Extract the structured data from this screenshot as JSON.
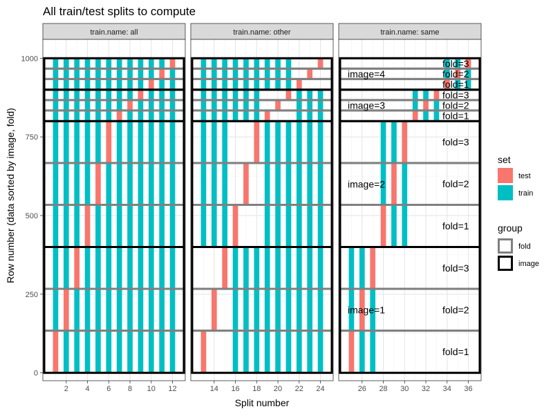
{
  "chart_data": {
    "type": "bar",
    "title": "All train/test splits to compute",
    "xlabel": "Split number",
    "ylabel": "Row number (data sorted by image, fold)",
    "ylim": [
      -25,
      1060
    ],
    "y_ticks": [
      0,
      250,
      500,
      750,
      1000
    ],
    "facet_var": "train.name",
    "facets": [
      {
        "name": "train.name: all",
        "xlim": [
          -0.2,
          13.2
        ],
        "x_ticks": [
          2,
          4,
          6,
          8,
          10,
          12
        ]
      },
      {
        "name": "train.name: other",
        "xlim": [
          11.8,
          25.2
        ],
        "x_ticks": [
          14,
          16,
          18,
          20,
          22,
          24
        ]
      },
      {
        "name": "train.name: same",
        "xlim": [
          23.8,
          37.2
        ],
        "x_ticks": [
          26,
          28,
          30,
          32,
          34,
          36
        ]
      }
    ],
    "images": [
      {
        "name": "image=1",
        "label": "image=1",
        "start": 0,
        "end": 400,
        "folds": [
          {
            "name": "fold=1",
            "label": "fold=1",
            "start": 0,
            "end": 134
          },
          {
            "name": "fold=2",
            "label": "fold=2",
            "start": 134,
            "end": 267
          },
          {
            "name": "fold=3",
            "label": "fold=3",
            "start": 267,
            "end": 400
          }
        ]
      },
      {
        "name": "image=2",
        "label": "image=2",
        "start": 400,
        "end": 800,
        "folds": [
          {
            "name": "fold=1",
            "label": "fold=1",
            "start": 400,
            "end": 534
          },
          {
            "name": "fold=2",
            "label": "fold=2",
            "start": 534,
            "end": 667
          },
          {
            "name": "fold=3",
            "label": "fold=3",
            "start": 667,
            "end": 800
          }
        ]
      },
      {
        "name": "image=3",
        "label": "image=3",
        "start": 800,
        "end": 900,
        "folds": [
          {
            "name": "fold=1",
            "label": "fold=1",
            "start": 800,
            "end": 834
          },
          {
            "name": "fold=2",
            "label": "fold=2",
            "start": 834,
            "end": 867
          },
          {
            "name": "fold=3",
            "label": "fold=3",
            "start": 867,
            "end": 900
          }
        ]
      },
      {
        "name": "image=4",
        "label": "image=4",
        "start": 900,
        "end": 1000,
        "folds": [
          {
            "name": "fold=1",
            "label": "fold=1",
            "start": 900,
            "end": 934
          },
          {
            "name": "fold=2",
            "label": "fold=2",
            "start": 934,
            "end": 967
          },
          {
            "name": "fold=3",
            "label": "fold=3",
            "start": 967,
            "end": 1000
          }
        ]
      }
    ],
    "splits": [
      {
        "split": 1,
        "facet": "train.name: all",
        "test": {
          "image": 1,
          "fold": 1
        },
        "train": "other_images_plus_same_image_other_folds"
      },
      {
        "split": 2,
        "facet": "train.name: all",
        "test": {
          "image": 1,
          "fold": 2
        }
      },
      {
        "split": 3,
        "facet": "train.name: all",
        "test": {
          "image": 1,
          "fold": 3
        }
      },
      {
        "split": 4,
        "facet": "train.name: all",
        "test": {
          "image": 2,
          "fold": 1
        }
      },
      {
        "split": 5,
        "facet": "train.name: all",
        "test": {
          "image": 2,
          "fold": 2
        }
      },
      {
        "split": 6,
        "facet": "train.name: all",
        "test": {
          "image": 2,
          "fold": 3
        }
      },
      {
        "split": 7,
        "facet": "train.name: all",
        "test": {
          "image": 3,
          "fold": 1
        }
      },
      {
        "split": 8,
        "facet": "train.name: all",
        "test": {
          "image": 3,
          "fold": 2
        }
      },
      {
        "split": 9,
        "facet": "train.name: all",
        "test": {
          "image": 3,
          "fold": 3
        }
      },
      {
        "split": 10,
        "facet": "train.name: all",
        "test": {
          "image": 4,
          "fold": 1
        }
      },
      {
        "split": 11,
        "facet": "train.name: all",
        "test": {
          "image": 4,
          "fold": 2
        }
      },
      {
        "split": 12,
        "facet": "train.name: all",
        "test": {
          "image": 4,
          "fold": 3
        }
      },
      {
        "split": 13,
        "facet": "train.name: other",
        "test": {
          "image": 1,
          "fold": 1
        }
      },
      {
        "split": 14,
        "facet": "train.name: other",
        "test": {
          "image": 1,
          "fold": 2
        }
      },
      {
        "split": 15,
        "facet": "train.name: other",
        "test": {
          "image": 1,
          "fold": 3
        }
      },
      {
        "split": 16,
        "facet": "train.name: other",
        "test": {
          "image": 2,
          "fold": 1
        }
      },
      {
        "split": 17,
        "facet": "train.name: other",
        "test": {
          "image": 2,
          "fold": 2
        }
      },
      {
        "split": 18,
        "facet": "train.name: other",
        "test": {
          "image": 2,
          "fold": 3
        }
      },
      {
        "split": 19,
        "facet": "train.name: other",
        "test": {
          "image": 3,
          "fold": 1
        }
      },
      {
        "split": 20,
        "facet": "train.name: other",
        "test": {
          "image": 3,
          "fold": 2
        }
      },
      {
        "split": 21,
        "facet": "train.name: other",
        "test": {
          "image": 3,
          "fold": 3
        }
      },
      {
        "split": 22,
        "facet": "train.name: other",
        "test": {
          "image": 4,
          "fold": 1
        }
      },
      {
        "split": 23,
        "facet": "train.name: other",
        "test": {
          "image": 4,
          "fold": 2
        }
      },
      {
        "split": 24,
        "facet": "train.name: other",
        "test": {
          "image": 4,
          "fold": 3
        }
      },
      {
        "split": 25,
        "facet": "train.name: same",
        "test": {
          "image": 1,
          "fold": 1
        }
      },
      {
        "split": 26,
        "facet": "train.name: same",
        "test": {
          "image": 1,
          "fold": 2
        }
      },
      {
        "split": 27,
        "facet": "train.name: same",
        "test": {
          "image": 1,
          "fold": 3
        }
      },
      {
        "split": 28,
        "facet": "train.name: same",
        "test": {
          "image": 2,
          "fold": 1
        }
      },
      {
        "split": 29,
        "facet": "train.name: same",
        "test": {
          "image": 2,
          "fold": 2
        }
      },
      {
        "split": 30,
        "facet": "train.name: same",
        "test": {
          "image": 2,
          "fold": 3
        }
      },
      {
        "split": 31,
        "facet": "train.name: same",
        "test": {
          "image": 3,
          "fold": 1
        }
      },
      {
        "split": 32,
        "facet": "train.name: same",
        "test": {
          "image": 3,
          "fold": 2
        }
      },
      {
        "split": 33,
        "facet": "train.name: same",
        "test": {
          "image": 3,
          "fold": 3
        }
      },
      {
        "split": 34,
        "facet": "train.name: same",
        "test": {
          "image": 4,
          "fold": 1
        }
      },
      {
        "split": 35,
        "facet": "train.name: same",
        "test": {
          "image": 4,
          "fold": 2
        }
      },
      {
        "split": 36,
        "facet": "train.name: same",
        "test": {
          "image": 4,
          "fold": 3
        }
      }
    ],
    "legend": {
      "placement": "right",
      "set": {
        "title": "set",
        "items": [
          {
            "label": "test",
            "color": "#F8766D"
          },
          {
            "label": "train",
            "color": "#00BFC4"
          }
        ]
      },
      "group": {
        "title": "group",
        "items": [
          {
            "label": "fold",
            "color": "#808080"
          },
          {
            "label": "image",
            "color": "#000000"
          }
        ]
      }
    },
    "grid": true,
    "colors": {
      "test": "#F8766D",
      "train": "#00BFC4",
      "fold_outline": "#808080",
      "image_outline": "#000000",
      "strip": "#D9D9D9"
    }
  }
}
